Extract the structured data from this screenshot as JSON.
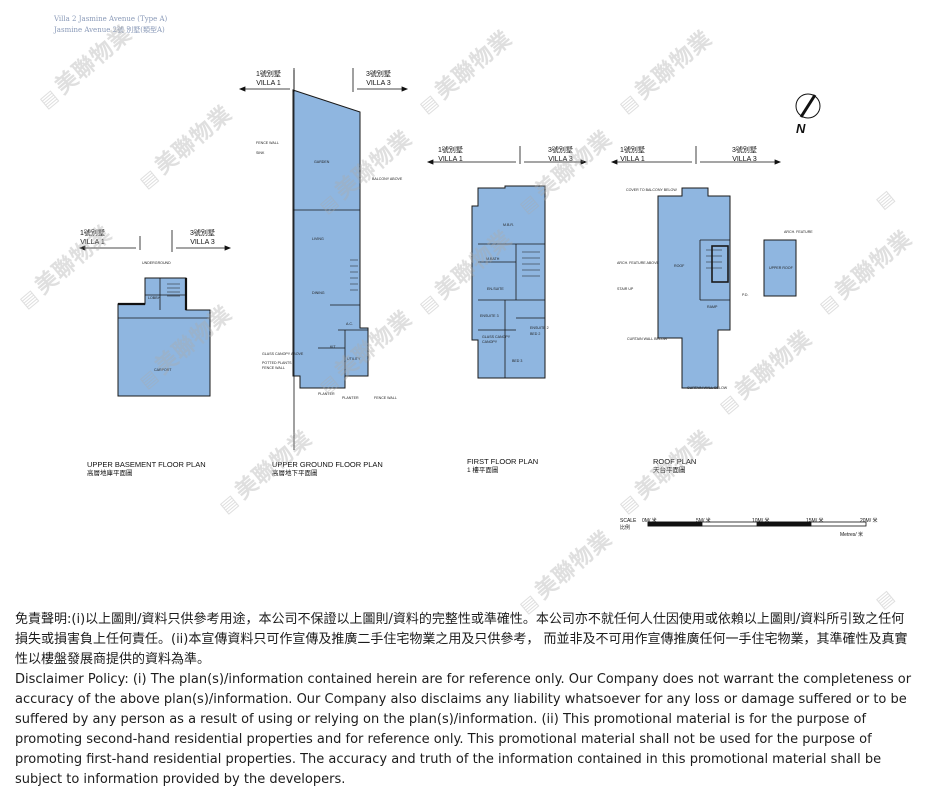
{
  "header": {
    "line1": "Villa 2 Jasmine Avenue (Type A)",
    "line2": "Jasmine Avenue 2號 別墅(類型A)"
  },
  "villa_labels": {
    "v1_zh": "1號別墅",
    "v1_en": "VILLA 1",
    "v3_zh": "3號別墅",
    "v3_en": "VILLA 3"
  },
  "plans": [
    {
      "title_en": "UPPER BASEMENT FLOOR PLAN",
      "title_zh": "高層地庫平面圖"
    },
    {
      "title_en": "UPPER GROUND FLOOR PLAN",
      "title_zh": "高層地下平面圖"
    },
    {
      "title_en": "FIRST FLOOR PLAN",
      "title_zh": "1 樓平面圖"
    },
    {
      "title_en": "ROOF PLAN",
      "title_zh": "天台平面圖"
    }
  ],
  "rooms": {
    "basement": [
      "UNDERGROUND",
      "LOBBY",
      "CARPORT"
    ],
    "ground": [
      "FENCE WALL",
      "SINK",
      "GARDEN",
      "BALCONY ABOVE",
      "LIVING",
      "DINING",
      "UTILITY",
      "KIT",
      "GLASS CANOPY ABOVE",
      "POTTED PLANTS",
      "FENCE WALL",
      "PLANTER",
      "PLANTER",
      "FENCE WALL",
      "A.C."
    ],
    "first": [
      "M.B.R.",
      "M.BATH",
      "EN-SUITE",
      "ENSUITE 3",
      "ENSUITE 2",
      "BED 3",
      "BED 2",
      "GLASS CANOPY",
      "CANOPY"
    ],
    "roof": [
      "COVER TO BALCONY BELOW",
      "ARCH. FEATURE",
      "ARCH. FEATURE ABOVE",
      "ROOF",
      "STAIR UP",
      "P.D.",
      "RAMP",
      "CURTAIN WALL BELOW",
      "CURTAIN WALL BELOW",
      "UPPER ROOF"
    ]
  },
  "compass": "N",
  "scale_bar": {
    "label_en": "SCALE",
    "label_zh": "比例",
    "ticks": [
      "0M/ 米",
      "5M/ 米",
      "10M/ 米",
      "15M/ 米",
      "20M/ 米"
    ],
    "unit": "Metres/ 米"
  },
  "watermark_text": "美聯物業",
  "disclaimer": {
    "zh": "免責聲明:(i)以上圖則/資料只供參考用途，本公司不保證以上圖則/資料的完整性或準確性。本公司亦不就任何人仕因使用或依賴以上圖則/資料所引致之任何損失或損害負上任何責任。(ii)本宣傳資料只可作宣傳及推廣二手住宅物業之用及只供參考， 而並非及不可用作宣傳推廣任何一手住宅物業，其準確性及真實性以樓盤發展商提供的資料為準。",
    "en": "Disclaimer Policy: (i) The plan(s)/information contained herein are for reference only. Our Company does not warrant the completeness or accuracy of the above plan(s)/information. Our Company also disclaims any liability whatsoever for any loss or damage suffered or to be suffered by any person as a result of using or relying on the plan(s)/information. (ii) This promotional material is for the purpose of promoting second-hand residential properties and for reference only. This promotional material shall not be used for the purpose of promoting first-hand residential properties. The accuracy and truth of the information contained in this promotional material shall be subject to information provided by the developers."
  },
  "colors": {
    "plan_fill": "#8fb6e0",
    "plan_stroke": "#1a1a1a",
    "header_text": "#8a9ab8",
    "watermark": "#aaaaaa"
  }
}
